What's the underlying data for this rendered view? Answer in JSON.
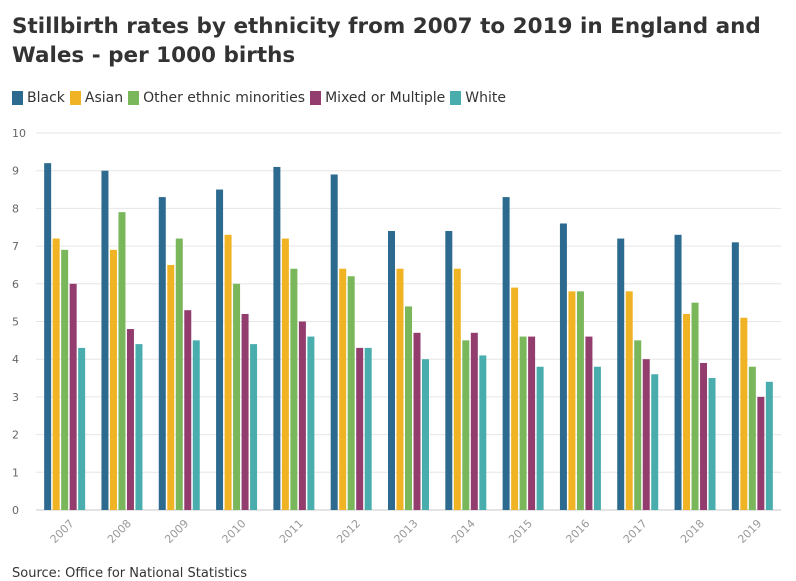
{
  "title": "Stillbirth rates by ethnicity from 2007 to 2019 in England and Wales - per 1000 births",
  "source": "Source: Office for National Statistics",
  "chart_data": {
    "type": "bar",
    "title": "Stillbirth rates by ethnicity from 2007 to 2019 in England and Wales - per 1000 births",
    "xlabel": "",
    "ylabel": "",
    "ylim": [
      0,
      10
    ],
    "yticks": [
      0,
      1,
      2,
      3,
      4,
      5,
      6,
      7,
      8,
      9,
      10
    ],
    "grid": true,
    "legend_position": "top-left",
    "categories": [
      "2007",
      "2008",
      "2009",
      "2010",
      "2011",
      "2012",
      "2013",
      "2014",
      "2015",
      "2016",
      "2017",
      "2018",
      "2019"
    ],
    "series": [
      {
        "name": "Black",
        "color": "#2d6a8f",
        "values": [
          9.2,
          9.0,
          8.3,
          8.5,
          9.1,
          8.9,
          7.4,
          7.4,
          8.3,
          7.6,
          7.2,
          7.3,
          7.1
        ]
      },
      {
        "name": "Asian",
        "color": "#f0b323",
        "values": [
          7.2,
          6.9,
          6.5,
          7.3,
          7.2,
          6.4,
          6.4,
          6.4,
          5.9,
          5.8,
          5.8,
          5.2,
          5.1
        ]
      },
      {
        "name": "Other ethnic minorities",
        "color": "#7ab65a",
        "values": [
          6.9,
          7.9,
          7.2,
          6.0,
          6.4,
          6.2,
          5.4,
          4.5,
          4.6,
          5.8,
          4.5,
          5.5,
          3.8
        ]
      },
      {
        "name": "Mixed or Multiple",
        "color": "#923d6e",
        "values": [
          6.0,
          4.8,
          5.3,
          5.2,
          5.0,
          4.3,
          4.7,
          4.7,
          4.6,
          4.6,
          4.0,
          3.9,
          3.0
        ]
      },
      {
        "name": "White",
        "color": "#4aadad",
        "values": [
          4.3,
          4.4,
          4.5,
          4.4,
          4.6,
          4.3,
          4.0,
          4.1,
          3.8,
          3.8,
          3.6,
          3.5,
          3.4
        ]
      }
    ]
  }
}
